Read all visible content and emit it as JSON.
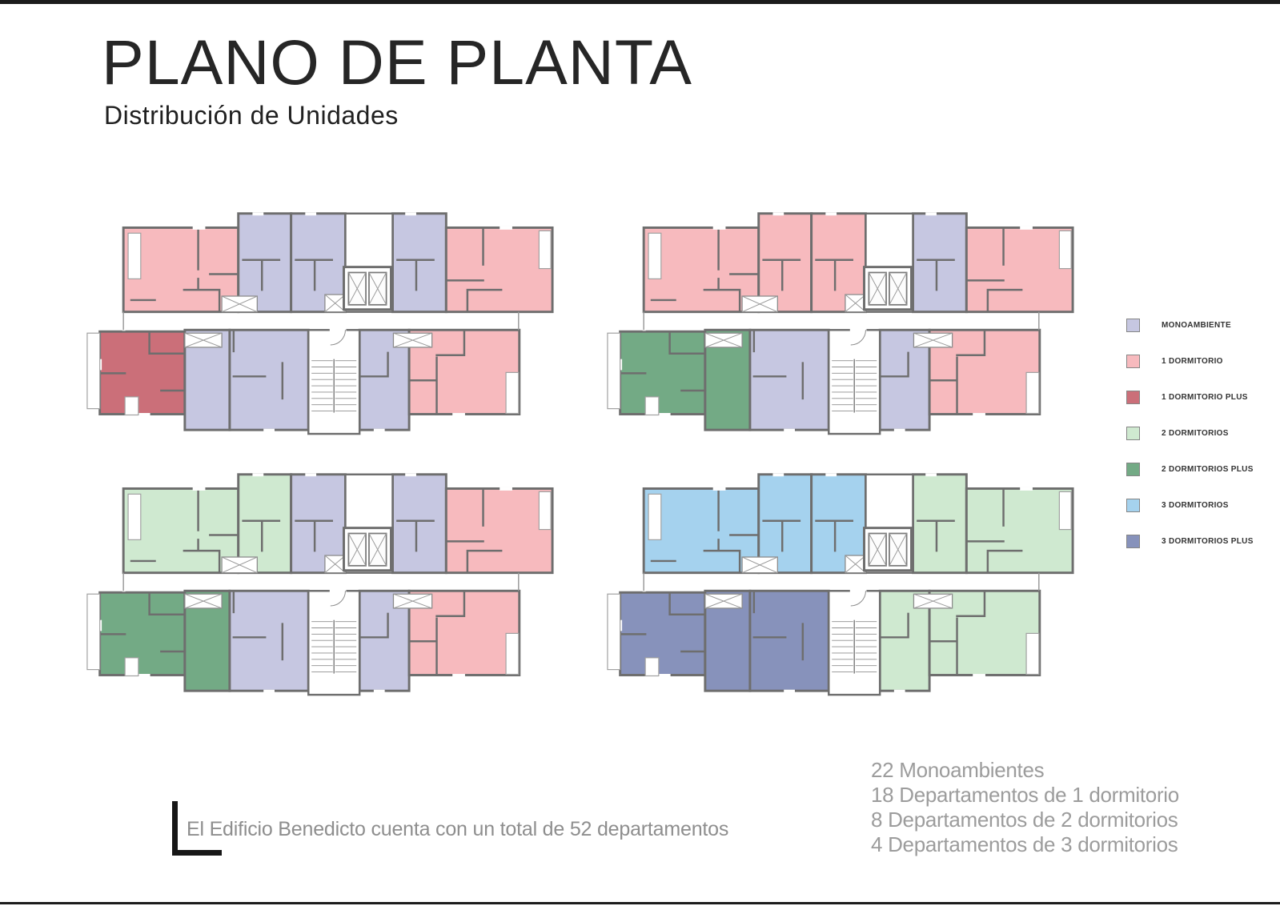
{
  "page": {
    "title": "PLANO DE PLANTA",
    "subtitle": "Distribución de Unidades",
    "footer_note": "El Edificio Benedicto cuenta con un total de 52 departamentos",
    "summary": [
      "22 Monoambientes",
      "18 Departamentos de 1 dormitorio",
      "8 Departamentos de 2 dormitorios",
      "4 Departamentos de 3 dormitorios"
    ]
  },
  "legend": {
    "items": [
      {
        "id": "mono",
        "label": "MONOAMBIENTE",
        "color": "#c6c7e1"
      },
      {
        "id": "d1",
        "label": "1 DORMITORIO",
        "color": "#f7babe"
      },
      {
        "id": "d1p",
        "label": "1 DORMITORIO PLUS",
        "color": "#cb6f79"
      },
      {
        "id": "d2",
        "label": "2 DORMITORIOS",
        "color": "#cfe9d0"
      },
      {
        "id": "d2p",
        "label": "2 DORMITORIOS PLUS",
        "color": "#73aa85"
      },
      {
        "id": "d3",
        "label": "3 DORMITORIOS",
        "color": "#a5d2ee"
      },
      {
        "id": "d3p",
        "label": "3 DORMITORIOS PLUS",
        "color": "#8792bb"
      }
    ]
  },
  "floor_plans": [
    {
      "id": "floor-plan-top-left",
      "units": {
        "ul": "d1",
        "um1": "mono",
        "um2": "mono",
        "um3": "mono",
        "ur": "d1",
        "ll": "d1p",
        "la1": "mono",
        "la2": "mono",
        "lb": "mono",
        "lr": "d1"
      }
    },
    {
      "id": "floor-plan-top-right",
      "units": {
        "ul": "d1",
        "um1": "d1",
        "um2": "d1",
        "um3": "mono",
        "ur": "d1",
        "ll": "d2p",
        "la1": "d2p",
        "la2": "mono",
        "lb": "mono",
        "lr": "d1"
      }
    },
    {
      "id": "floor-plan-bottom-left",
      "units": {
        "ul": "d2",
        "um1": "d2",
        "um2": "mono",
        "um3": "mono",
        "ur": "d1",
        "ll": "d2p",
        "la1": "d2p",
        "la2": "mono",
        "lb": "mono",
        "lr": "d1"
      }
    },
    {
      "id": "floor-plan-bottom-right",
      "units": {
        "ul": "d3",
        "um1": "d3",
        "um2": "d3",
        "um3": "d2",
        "ur": "d2",
        "ll": "d3p",
        "la1": "d3p",
        "la2": "d3p",
        "lb": "d2",
        "lr": "d2"
      }
    }
  ],
  "drawing": {
    "wall_color": "#6e6e6e",
    "frame_color": "#1c1c1c"
  }
}
